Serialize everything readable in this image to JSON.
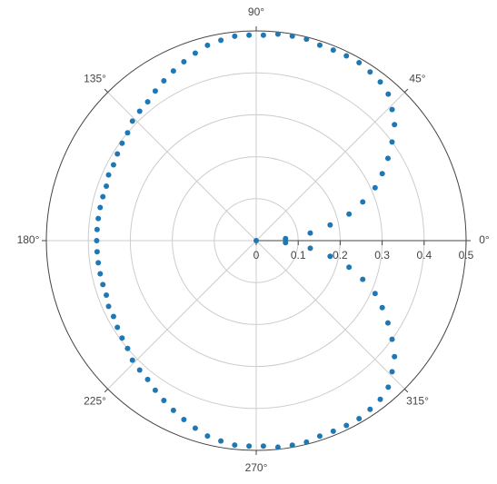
{
  "chart_data": {
    "type": "polar-scatter",
    "theta": [
      0,
      4,
      8,
      12,
      16,
      20,
      24,
      28,
      32,
      36,
      40,
      44,
      48,
      52,
      56,
      60,
      64,
      68,
      72,
      76,
      80,
      84,
      88,
      92,
      96,
      100,
      104,
      108,
      112,
      116,
      120,
      124,
      128,
      132,
      136,
      140,
      144,
      148,
      152,
      156,
      160,
      164,
      168,
      172,
      176,
      180,
      184,
      188,
      192,
      196,
      200,
      204,
      208,
      212,
      216,
      220,
      224,
      228,
      232,
      236,
      240,
      244,
      248,
      252,
      256,
      260,
      264,
      268,
      272,
      276,
      280,
      284,
      288,
      292,
      296,
      300,
      304,
      308,
      312,
      316,
      320,
      324,
      328,
      332,
      336,
      340,
      344,
      348,
      352,
      356
    ],
    "r": [
      0,
      0.07,
      0.13,
      0.18,
      0.23,
      0.27,
      0.31,
      0.34,
      0.37,
      0.4,
      0.43,
      0.45,
      0.47,
      0.48,
      0.485,
      0.49,
      0.49,
      0.49,
      0.49,
      0.495,
      0.495,
      0.495,
      0.49,
      0.49,
      0.49,
      0.485,
      0.48,
      0.47,
      0.46,
      0.45,
      0.44,
      0.43,
      0.42,
      0.415,
      0.41,
      0.4,
      0.395,
      0.39,
      0.385,
      0.385,
      0.38,
      0.38,
      0.38,
      0.38,
      0.38,
      0.38,
      0.38,
      0.38,
      0.38,
      0.38,
      0.38,
      0.385,
      0.385,
      0.39,
      0.395,
      0.4,
      0.41,
      0.415,
      0.42,
      0.43,
      0.44,
      0.45,
      0.46,
      0.47,
      0.48,
      0.485,
      0.49,
      0.49,
      0.49,
      0.495,
      0.495,
      0.495,
      0.49,
      0.49,
      0.49,
      0.49,
      0.485,
      0.48,
      0.47,
      0.45,
      0.43,
      0.4,
      0.37,
      0.34,
      0.31,
      0.27,
      0.23,
      0.18,
      0.13,
      0.07
    ],
    "color": "#1f77b4",
    "rlim": [
      0,
      0.5
    ],
    "rticks": [
      0,
      0.1,
      0.2,
      0.3,
      0.4,
      0.5
    ],
    "thetaticks": [
      {
        "value": 0,
        "label": "0°"
      },
      {
        "value": 45,
        "label": "45°"
      },
      {
        "value": 90,
        "label": "90°"
      },
      {
        "value": 135,
        "label": "135°"
      },
      {
        "value": 180,
        "label": "180°"
      },
      {
        "value": 225,
        "label": "225°"
      },
      {
        "value": 270,
        "label": "270°"
      },
      {
        "value": 315,
        "label": "315°"
      }
    ],
    "grid": true
  }
}
